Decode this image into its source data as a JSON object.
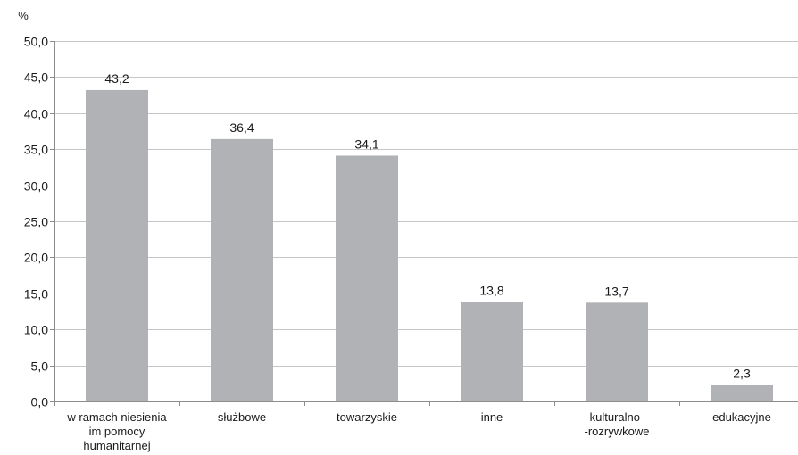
{
  "chart_data": {
    "type": "bar",
    "unit_label": "%",
    "categories": [
      [
        "w ramach niesienia",
        "im pomocy",
        "humanitarnej"
      ],
      [
        "służbowe"
      ],
      [
        "towarzyskie"
      ],
      [
        "inne"
      ],
      [
        "kulturalno-",
        "-rozrywkowe"
      ],
      [
        "edukacyjne"
      ]
    ],
    "values": [
      43.2,
      36.4,
      34.1,
      13.8,
      13.7,
      2.3
    ],
    "value_labels": [
      "43,2",
      "36,4",
      "34,1",
      "13,8",
      "13,7",
      "2,3"
    ],
    "ylim": [
      0,
      50
    ],
    "yticks": [
      0,
      5,
      10,
      15,
      20,
      25,
      30,
      35,
      40,
      45,
      50
    ],
    "ytick_labels": [
      "0,0",
      "5,0",
      "10,0",
      "15,0",
      "20,0",
      "25,0",
      "30,0",
      "35,0",
      "40,0",
      "45,0",
      "50,0"
    ],
    "grid": true,
    "legend": "none",
    "bar_color": "#b1b2b6",
    "grid_color": "#c6c6c6"
  }
}
